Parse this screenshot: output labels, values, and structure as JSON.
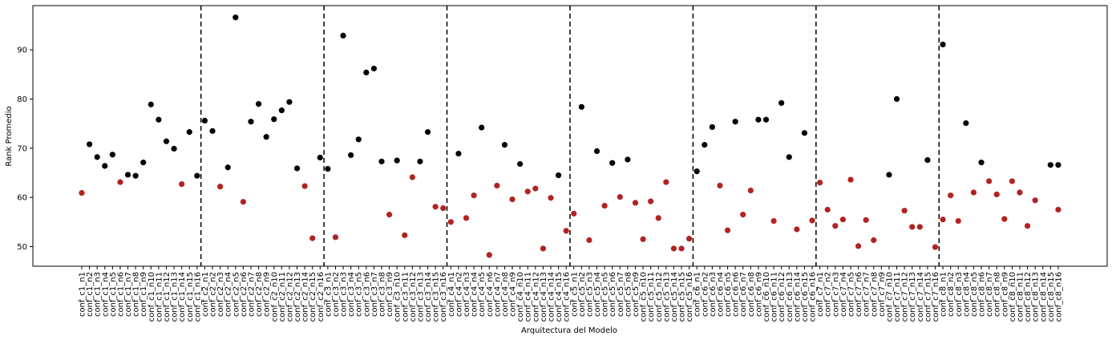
{
  "chart_data": {
    "type": "scatter",
    "title": "",
    "xlabel": "Arquitectura del Modelo",
    "ylabel": "Rank Promedio",
    "ylim": [
      46,
      99
    ],
    "yticks": [
      50,
      60,
      70,
      80,
      90
    ],
    "grid": false,
    "legend": "none",
    "colors": {
      "black": "#000000",
      "red": "#b22222"
    },
    "separators_after_index": [
      15,
      31,
      47,
      63,
      79,
      95,
      111
    ],
    "categories": [
      "conf_c1_n1",
      "conf_c1_n2",
      "conf_c1_n3",
      "conf_c1_n4",
      "conf_c1_n5",
      "conf_c1_n6",
      "conf_c1_n7",
      "conf_c1_n8",
      "conf_c1_n9",
      "conf_c1_n10",
      "conf_c1_n11",
      "conf_c1_n12",
      "conf_c1_n13",
      "conf_c1_n14",
      "conf_c1_n15",
      "conf_c1_n16",
      "conf_c2_n1",
      "conf_c2_n2",
      "conf_c2_n3",
      "conf_c2_n4",
      "conf_c2_n5",
      "conf_c2_n6",
      "conf_c2_n7",
      "conf_c2_n8",
      "conf_c2_n9",
      "conf_c2_n10",
      "conf_c2_n11",
      "conf_c2_n12",
      "conf_c2_n13",
      "conf_c2_n14",
      "conf_c2_n15",
      "conf_c2_n16",
      "conf_c3_n1",
      "conf_c3_n2",
      "conf_c3_n3",
      "conf_c3_n4",
      "conf_c3_n5",
      "conf_c3_n6",
      "conf_c3_n7",
      "conf_c3_n8",
      "conf_c3_n9",
      "conf_c3_n10",
      "conf_c3_n11",
      "conf_c3_n12",
      "conf_c3_n13",
      "conf_c3_n14",
      "conf_c3_n15",
      "conf_c3_n16",
      "conf_c4_n1",
      "conf_c4_n2",
      "conf_c4_n3",
      "conf_c4_n4",
      "conf_c4_n5",
      "conf_c4_n6",
      "conf_c4_n7",
      "conf_c4_n8",
      "conf_c4_n9",
      "conf_c4_n10",
      "conf_c4_n11",
      "conf_c4_n12",
      "conf_c4_n13",
      "conf_c4_n14",
      "conf_c4_n15",
      "conf_c4_n16",
      "conf_c5_n1",
      "conf_c5_n2",
      "conf_c5_n3",
      "conf_c5_n4",
      "conf_c5_n5",
      "conf_c5_n6",
      "conf_c5_n7",
      "conf_c5_n8",
      "conf_c5_n9",
      "conf_c5_n10",
      "conf_c5_n11",
      "conf_c5_n12",
      "conf_c5_n13",
      "conf_c5_n14",
      "conf_c5_n15",
      "conf_c5_n16",
      "conf_c6_n1",
      "conf_c6_n2",
      "conf_c6_n3",
      "conf_c6_n4",
      "conf_c6_n5",
      "conf_c6_n6",
      "conf_c6_n7",
      "conf_c6_n8",
      "conf_c6_n9",
      "conf_c6_n10",
      "conf_c6_n11",
      "conf_c6_n12",
      "conf_c6_n13",
      "conf_c6_n14",
      "conf_c6_n15",
      "conf_c6_n16",
      "conf_c7_n1",
      "conf_c7_n2",
      "conf_c7_n3",
      "conf_c7_n4",
      "conf_c7_n5",
      "conf_c7_n6",
      "conf_c7_n7",
      "conf_c7_n8",
      "conf_c7_n9",
      "conf_c7_n10",
      "conf_c7_n11",
      "conf_c7_n12",
      "conf_c7_n13",
      "conf_c7_n14",
      "conf_c7_n15",
      "conf_c7_n16",
      "conf_c8_n1",
      "conf_c8_n2",
      "conf_c8_n3",
      "conf_c8_n4",
      "conf_c8_n5",
      "conf_c8_n6",
      "conf_c8_n7",
      "conf_c8_n8",
      "conf_c8_n9",
      "conf_c8_n10",
      "conf_c8_n11",
      "conf_c8_n12",
      "conf_c8_n13",
      "conf_c8_n14",
      "conf_c8_n15",
      "conf_c8_n16"
    ],
    "series": [
      {
        "color": "#000000",
        "values": [
          null,
          70.8,
          68.2,
          66.4,
          68.7,
          null,
          64.6,
          64.4,
          67.1,
          78.9,
          75.8,
          71.4,
          69.9,
          null,
          73.3,
          64.4,
          75.6,
          73.5,
          null,
          66.1,
          96.6,
          null,
          75.4,
          79.0,
          72.3,
          75.9,
          77.7,
          79.4,
          65.9,
          null,
          null,
          68.1,
          65.8,
          null,
          92.9,
          68.6,
          71.8,
          85.4,
          86.2,
          67.3,
          null,
          67.5,
          null,
          null,
          67.3,
          73.3,
          null,
          null,
          null,
          68.9,
          null,
          null,
          74.2,
          null,
          null,
          70.7,
          null,
          66.8,
          null,
          null,
          null,
          null,
          64.5,
          null,
          null,
          78.4,
          null,
          69.4,
          null,
          67.0,
          null,
          67.7,
          null,
          null,
          null,
          null,
          null,
          null,
          null,
          null,
          65.3,
          70.7,
          74.3,
          null,
          null,
          75.4,
          null,
          null,
          75.8,
          75.8,
          null,
          79.2,
          68.2,
          null,
          73.1,
          null,
          null,
          null,
          null,
          null,
          null,
          null,
          null,
          null,
          null,
          64.6,
          80.0,
          null,
          null,
          null,
          67.6,
          null,
          91.1,
          null,
          null,
          75.1,
          null,
          67.1,
          null,
          null,
          null,
          null,
          null,
          null,
          null,
          null,
          66.6,
          66.6
        ]
      },
      {
        "color": "#b22222",
        "values": [
          60.9,
          null,
          null,
          null,
          null,
          63.1,
          null,
          null,
          null,
          null,
          null,
          null,
          null,
          62.7,
          null,
          null,
          null,
          null,
          62.2,
          null,
          null,
          59.1,
          null,
          null,
          null,
          null,
          null,
          null,
          null,
          62.3,
          51.7,
          null,
          null,
          51.9,
          null,
          null,
          null,
          null,
          null,
          null,
          56.5,
          null,
          52.3,
          64.1,
          null,
          null,
          58.1,
          57.8,
          55.0,
          null,
          55.8,
          60.4,
          null,
          48.3,
          62.4,
          null,
          59.6,
          null,
          61.2,
          61.8,
          49.6,
          59.9,
          null,
          53.2,
          56.7,
          null,
          51.3,
          null,
          58.3,
          null,
          60.1,
          null,
          58.9,
          51.5,
          59.2,
          55.8,
          63.1,
          49.6,
          49.6,
          51.6,
          null,
          null,
          null,
          62.4,
          53.3,
          null,
          56.5,
          61.4,
          null,
          null,
          55.2,
          null,
          null,
          53.5,
          null,
          55.3,
          63.0,
          57.5,
          54.2,
          55.5,
          63.6,
          50.1,
          55.4,
          51.3,
          null,
          null,
          null,
          57.3,
          54.0,
          54.0,
          null,
          49.9,
          55.5,
          60.4,
          55.2,
          null,
          61.0,
          null,
          63.3,
          60.6,
          55.6,
          63.3,
          61.0,
          54.2,
          59.4,
          null,
          null,
          57.5
        ]
      }
    ]
  }
}
